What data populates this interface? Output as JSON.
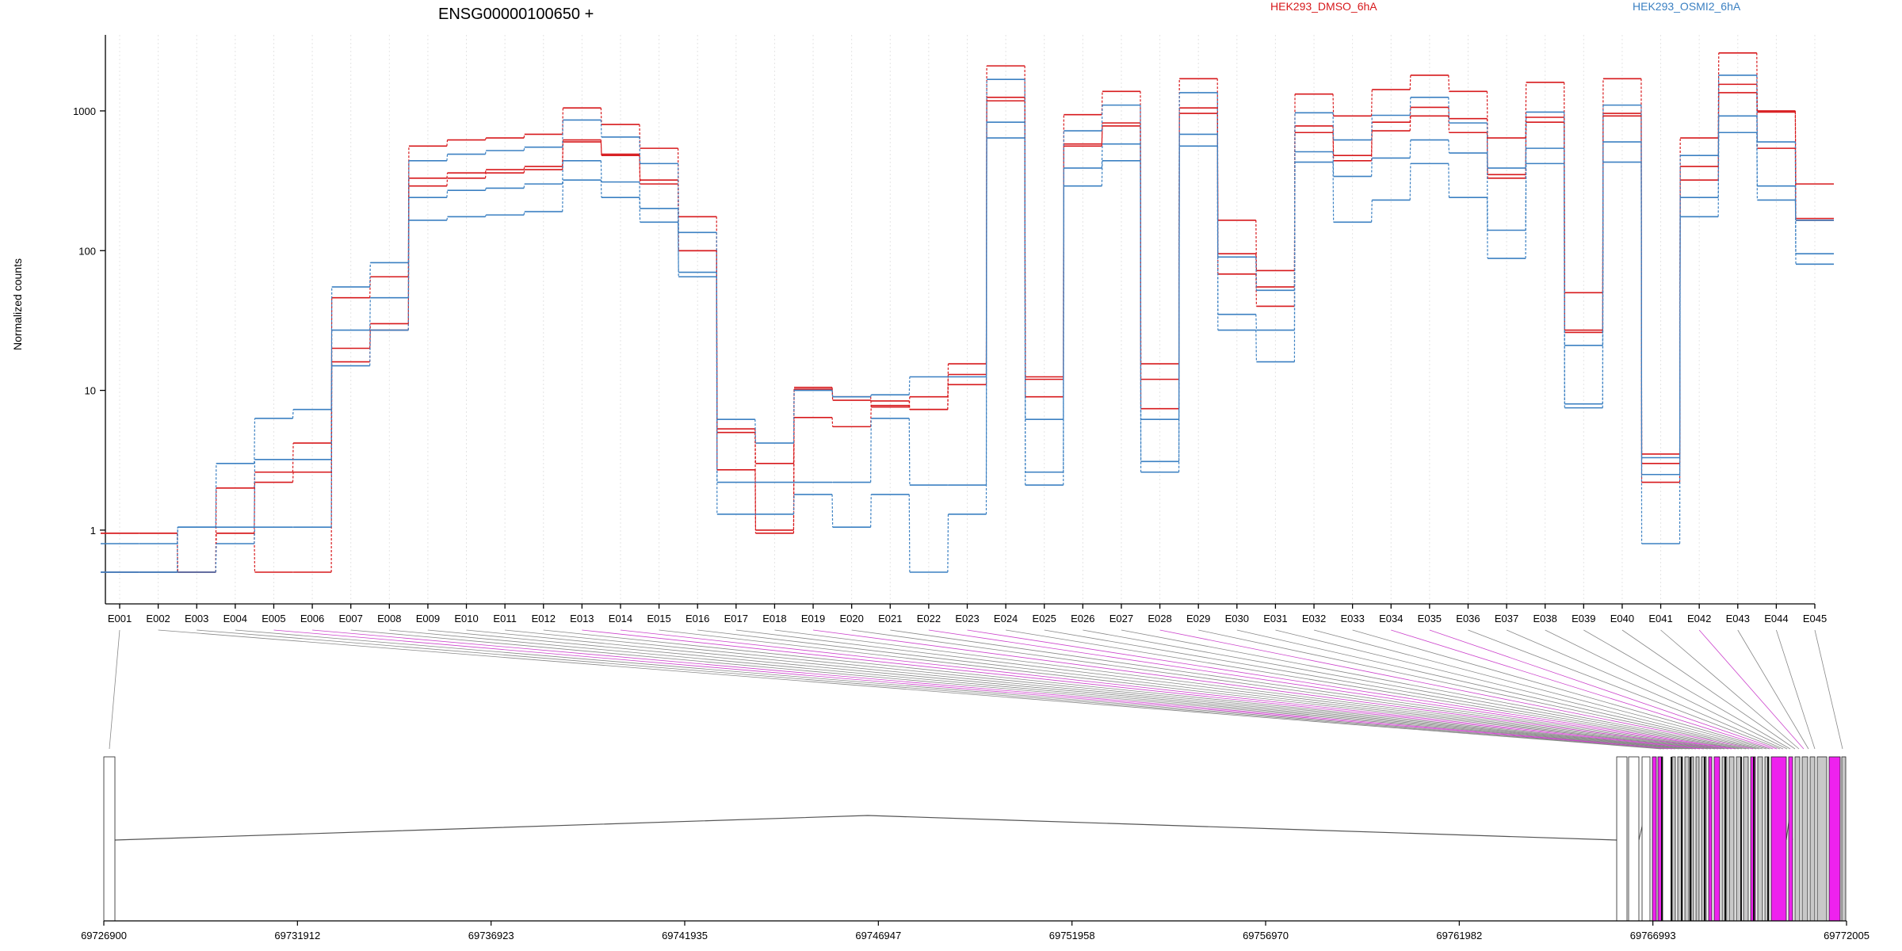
{
  "chart_data": {
    "type": "line",
    "title": "ENSG00000100650 +",
    "ylabel": "Normalized counts",
    "xlabel": "",
    "y_scale": "log",
    "ylim": [
      0.5,
      3500
    ],
    "y_ticks": [
      1,
      10,
      100,
      1000
    ],
    "y_tick_labels": [
      "1",
      "10",
      "100",
      "1000"
    ],
    "grid": "vertical dotted lines at each exon",
    "legend_placement": "top",
    "categories": [
      "E001",
      "E002",
      "E003",
      "E004",
      "E005",
      "E006",
      "E007",
      "E008",
      "E009",
      "E010",
      "E011",
      "E012",
      "E013",
      "E014",
      "E015",
      "E016",
      "E017",
      "E018",
      "E019",
      "E020",
      "E021",
      "E022",
      "E023",
      "E024",
      "E025",
      "E026",
      "E027",
      "E028",
      "E029",
      "E030",
      "E031",
      "E032",
      "E033",
      "E034",
      "E035",
      "E036",
      "E037",
      "E038",
      "E039",
      "E040",
      "E041",
      "E042",
      "E043",
      "E044",
      "E045"
    ],
    "series": [
      {
        "name": "HEK293_DMSO_6hA",
        "color": "#d7191c",
        "values": [
          0.95,
          0.95,
          0.5,
          2,
          2.6,
          4.2,
          46,
          65,
          560,
          620,
          640,
          680,
          1050,
          800,
          540,
          175,
          5,
          3,
          10.2,
          8.5,
          8.4,
          7.3,
          15.5,
          2100,
          12,
          940,
          1380,
          15.5,
          1700,
          165,
          72,
          1320,
          920,
          1420,
          1800,
          1380,
          640,
          1600,
          50,
          1700,
          3.5,
          640,
          2600,
          1000,
          300
        ]
      },
      {
        "name": "HEK293_DMSO_6hA",
        "color": "#d7191c",
        "values": [
          0.95,
          0.95,
          0.5,
          0.95,
          2.2,
          2.6,
          20,
          30,
          330,
          360,
          380,
          400,
          620,
          490,
          320,
          100,
          2.7,
          1.0,
          10.5,
          9,
          7.6,
          9,
          13,
          1250,
          9,
          580,
          820,
          7.4,
          1050,
          95,
          55,
          780,
          480,
          830,
          1060,
          880,
          350,
          900,
          27,
          960,
          3,
          400,
          1550,
          980,
          170
        ]
      },
      {
        "name": "HEK293_DMSO_6hA",
        "color": "#d7191c",
        "values": [
          0.5,
          0.5,
          0.5,
          0.95,
          0.5,
          0.5,
          16,
          27,
          290,
          330,
          360,
          380,
          600,
          480,
          300,
          100,
          5.3,
          0.95,
          6.4,
          5.5,
          7.8,
          7.3,
          11,
          1180,
          12.5,
          560,
          780,
          12,
          960,
          68,
          40,
          700,
          440,
          720,
          920,
          700,
          330,
          830,
          26,
          920,
          2.2,
          320,
          1350,
          540,
          165
        ]
      },
      {
        "name": "HEK293_OSMI2_6hA",
        "color": "#3b80c2",
        "values": [
          0.8,
          0.8,
          1.05,
          3,
          6.3,
          7.3,
          55,
          82,
          440,
          490,
          520,
          550,
          860,
          650,
          420,
          135,
          6.2,
          4.2,
          10,
          9,
          9.3,
          12.5,
          12.5,
          1680,
          6.2,
          720,
          1100,
          6.2,
          1350,
          90,
          52,
          970,
          620,
          930,
          1250,
          820,
          390,
          980,
          21,
          1100,
          2.5,
          480,
          1800,
          600,
          95
        ]
      },
      {
        "name": "HEK293_OSMI2_6hA",
        "color": "#3b80c2",
        "values": [
          0.5,
          0.5,
          1.05,
          1.05,
          3.2,
          3.2,
          27,
          46,
          240,
          270,
          280,
          300,
          440,
          310,
          200,
          70,
          2.2,
          2.2,
          2.2,
          2.2,
          6.3,
          2.1,
          2.1,
          830,
          2.6,
          390,
          580,
          3.1,
          680,
          35,
          27,
          510,
          340,
          460,
          620,
          500,
          140,
          540,
          8,
          600,
          3.3,
          240,
          920,
          290,
          80
        ]
      },
      {
        "name": "HEK293_OSMI2_6hA",
        "color": "#3b80c2",
        "values": [
          0.5,
          0.5,
          0.5,
          0.8,
          1.05,
          1.05,
          15,
          27,
          165,
          175,
          180,
          190,
          320,
          240,
          160,
          65,
          1.3,
          1.3,
          1.8,
          1.05,
          1.8,
          0.5,
          1.3,
          640,
          2.1,
          290,
          440,
          2.6,
          560,
          27,
          16,
          430,
          160,
          230,
          420,
          240,
          88,
          420,
          7.5,
          430,
          0.8,
          175,
          700,
          230,
          165
        ]
      }
    ],
    "annotations": {
      "top_ticks": [
        "1",
        "10",
        "100",
        "1000"
      ],
      "gene_axis_ticks": [
        "69726900",
        "69731912",
        "69736923",
        "69741935",
        "69746947",
        "69751958",
        "69756970",
        "69761982",
        "69766993",
        "69772005"
      ]
    }
  },
  "gene_model": {
    "colors": {
      "exon": "#c8c8c8",
      "tested_exon": "#ee22ee",
      "line": "#555555",
      "axis": "#000000"
    }
  }
}
